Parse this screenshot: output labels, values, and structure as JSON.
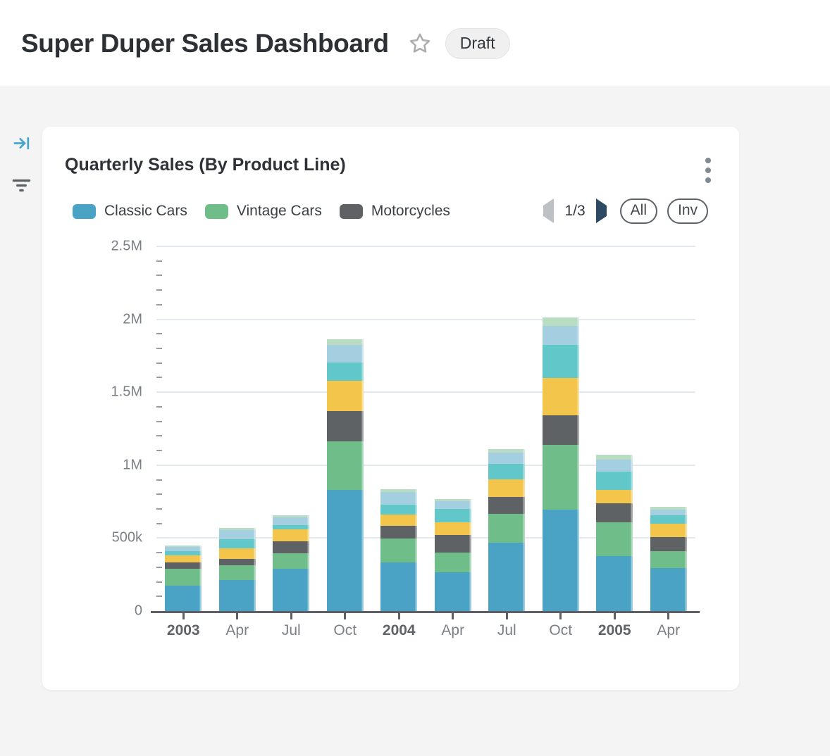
{
  "header": {
    "title": "Super Duper Sales Dashboard",
    "badge": "Draft"
  },
  "icons": {
    "star": "outline star ☆",
    "kebab_menu": "vertical three dots ⋮",
    "collapse_panel": "arrow into bar →|",
    "filter": "funnel of shrinking lines",
    "prev_page": "left triangle ◀ (disabled, light gray)",
    "next_page": "right triangle ▶ (dark slate)"
  },
  "colors": {
    "page_background": "#f4f4f5",
    "card_background": "#ffffff",
    "accent_blue": "#45a5cb",
    "axis": "#5d6167",
    "gridline": "#e4e8f1",
    "badge_background": "#f0f0f1"
  },
  "card": {
    "title": "Quarterly Sales (By Product Line)",
    "legend": {
      "items": [
        {
          "label": "Classic Cars",
          "color": "#4aa2c5"
        },
        {
          "label": "Vintage Cars",
          "color": "#6fbd89"
        },
        {
          "label": "Motorcycles",
          "color": "#5f6265"
        }
      ],
      "page_indicator": "1/3",
      "all_label": "All",
      "invert_label": "Inv"
    }
  },
  "chart_data": {
    "type": "bar",
    "stacked": true,
    "title": "Quarterly Sales (By Product Line)",
    "legend_position": "top",
    "grid": "horizontal major gridlines only",
    "categories": [
      {
        "label": "2003",
        "bold": true
      },
      {
        "label": "Apr"
      },
      {
        "label": "Jul"
      },
      {
        "label": "Oct"
      },
      {
        "label": "2004",
        "bold": true
      },
      {
        "label": "Apr"
      },
      {
        "label": "Jul"
      },
      {
        "label": "Oct"
      },
      {
        "label": "2005",
        "bold": true
      },
      {
        "label": "Apr"
      }
    ],
    "series": [
      {
        "name": "Classic Cars",
        "color": "#4aa2c5",
        "in_legend": true,
        "values": [
          172000,
          212000,
          289000,
          832000,
          334000,
          265000,
          466000,
          696000,
          375000,
          294000
        ]
      },
      {
        "name": "Vintage Cars",
        "color": "#6fbd89",
        "in_legend": true,
        "values": [
          120000,
          101000,
          105000,
          333000,
          164000,
          134000,
          201000,
          442000,
          233000,
          116000
        ]
      },
      {
        "name": "Motorcycles",
        "color": "#5f6265",
        "in_legend": true,
        "values": [
          43000,
          43000,
          83000,
          204000,
          88000,
          124000,
          117000,
          204000,
          132000,
          98000
        ]
      },
      {
        "name": "(unlabeled series 4 - yellow)",
        "color": "#f3c64b",
        "in_legend": false,
        "values": [
          48000,
          72000,
          81000,
          209000,
          76000,
          85000,
          119000,
          257000,
          90000,
          92000
        ]
      },
      {
        "name": "(unlabeled series 5 - teal)",
        "color": "#62c7c8",
        "in_legend": false,
        "values": [
          26000,
          64000,
          32000,
          125000,
          66000,
          92000,
          106000,
          225000,
          124000,
          56000
        ]
      },
      {
        "name": "(unlabeled series 6 - light blue)",
        "color": "#a3cfe0",
        "in_legend": false,
        "values": [
          32000,
          64000,
          53000,
          121000,
          88000,
          53000,
          76000,
          133000,
          85000,
          40000
        ]
      },
      {
        "name": "(unlabeled series 7 - pale green)",
        "color": "#b8ddc2",
        "in_legend": false,
        "values": [
          6000,
          13000,
          14000,
          40000,
          19000,
          16000,
          24000,
          56000,
          31000,
          19000
        ]
      }
    ],
    "y_axis": {
      "max": 2500000,
      "minor_step": 100000,
      "ticks": [
        {
          "value": 0,
          "label": "0"
        },
        {
          "value": 500000,
          "label": "500k"
        },
        {
          "value": 1000000,
          "label": "1M"
        },
        {
          "value": 1500000,
          "label": "1.5M"
        },
        {
          "value": 2000000,
          "label": "2M"
        },
        {
          "value": 2500000,
          "label": "2.5M"
        }
      ]
    }
  }
}
